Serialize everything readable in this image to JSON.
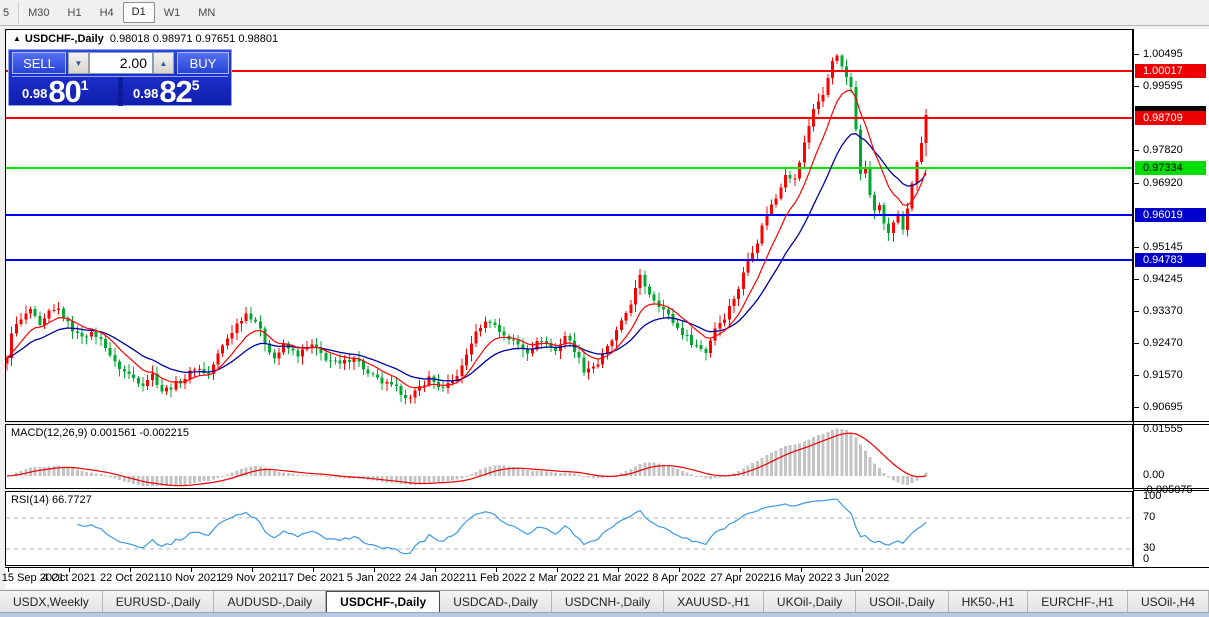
{
  "timeframe_bar": {
    "items": [
      "5",
      "M30",
      "H1",
      "H4",
      "D1",
      "W1",
      "MN"
    ],
    "active": "D1"
  },
  "chart_header": {
    "collapse_icon": "▲",
    "symbol_title": "USDCHF-,Daily",
    "ohlc_text": "0.98018 0.98971 0.97651 0.98801"
  },
  "trade_panel": {
    "sell_label": "SELL",
    "buy_label": "BUY",
    "volume": "2.00",
    "volume_down_icon": "▼",
    "volume_up_icon": "▲",
    "sell_price": {
      "prefix": "0.98",
      "big": "80",
      "sup": "1"
    },
    "buy_price": {
      "prefix": "0.98",
      "big": "82",
      "sup": "5"
    }
  },
  "price_axis": {
    "ticks": [
      "1.00495",
      "0.99595",
      "0.97820",
      "0.96920",
      "0.95145",
      "0.94245",
      "0.93370",
      "0.92470",
      "0.91570",
      "0.90695"
    ],
    "badges": [
      {
        "text": "1.00017",
        "bg": "#ee0000",
        "fg": "#ffffff",
        "marker_above": false
      },
      {
        "text": "0.98709",
        "bg": "#ee0000",
        "fg": "#ffffff",
        "marker_above": true
      },
      {
        "text": "0.97334",
        "bg": "#00dd00",
        "fg": "#000000",
        "marker_above": false
      },
      {
        "text": "0.96019",
        "bg": "#0000cc",
        "fg": "#ffffff",
        "marker_above": false
      },
      {
        "text": "0.94783",
        "bg": "#0000cc",
        "fg": "#ffffff",
        "marker_above": false
      }
    ]
  },
  "macd_panel": {
    "label": "MACD(12,26,9) 0.001561 -0.002215",
    "axis": [
      "0.01555",
      "0.00",
      "-0.005075"
    ]
  },
  "rsi_panel": {
    "label": "RSI(14) 66.7727",
    "axis": [
      "100",
      "70",
      "30",
      "0"
    ]
  },
  "x_axis": {
    "dates": [
      "15 Sep 2021",
      "4 Oct 2021",
      "22 Oct 2021",
      "10 Nov 2021",
      "29 Nov 2021",
      "17 Dec 2021",
      "5 Jan 2022",
      "24 Jan 2022",
      "11 Feb 2022",
      "2 Mar 2022",
      "21 Mar 2022",
      "8 Apr 2022",
      "27 Apr 2022",
      "16 May 2022",
      "3 Jun 2022"
    ]
  },
  "bottom_tabs": {
    "tabs": [
      "USDX,Weekly",
      "EURUSD-,Daily",
      "AUDUSD-,Daily",
      "USDCHF-,Daily",
      "USDCAD-,Daily",
      "USDCNH-,Daily",
      "XAUUSD-,H1",
      "UKOil-,Daily",
      "USOil-,Daily",
      "HK50-,H1",
      "EURCHF-,H1",
      "USOil-,H4"
    ],
    "active": "USDCHF-,Daily",
    "left_arrow": "◄",
    "right_arrow": "►"
  },
  "chart_data": {
    "type": "candlestick",
    "symbol": "USDCHF-",
    "timeframe": "Daily",
    "last_ohlc": {
      "open": 0.98018,
      "high": 0.98971,
      "low": 0.97651,
      "close": 0.98801
    },
    "y_axis": {
      "price_top": 1.00495,
      "price_bottom": 0.90695
    },
    "levels": [
      {
        "price": 1.00017,
        "color": "#ff0000"
      },
      {
        "price": 0.98709,
        "color": "#ff0000"
      },
      {
        "price": 0.97334,
        "color": "#00e600"
      },
      {
        "price": 0.96019,
        "color": "#0000ff"
      },
      {
        "price": 0.94783,
        "color": "#0000ff"
      }
    ],
    "colors": {
      "candle_up": "#ff0000",
      "candle_down": "#00a832",
      "ma_fast": "#ff0000",
      "ma_slow": "#0000a0",
      "macd_hist": "#c4c4c4",
      "macd_signal": "#ee0000",
      "rsi_line": "#3d9ae8"
    },
    "indicators": {
      "macd": {
        "params": "12,26,9",
        "value": 0.001561,
        "signal_value": -0.002215,
        "scale_max": 0.01555,
        "scale_min": -0.005075
      },
      "rsi": {
        "period": 14,
        "value": 66.7727,
        "levels": [
          70,
          30
        ]
      },
      "ma_fast_period": 9,
      "ma_slow_period": 20
    },
    "close_path_anchors": [
      [
        0,
        0.92
      ],
      [
        1,
        0.928
      ],
      [
        3,
        0.931
      ],
      [
        5,
        0.934
      ],
      [
        7,
        0.929
      ],
      [
        9,
        0.933
      ],
      [
        11,
        0.934
      ],
      [
        13,
        0.93
      ],
      [
        15,
        0.927
      ],
      [
        17,
        0.9272
      ],
      [
        19,
        0.9268
      ],
      [
        21,
        0.924
      ],
      [
        23,
        0.919
      ],
      [
        25,
        0.9168
      ],
      [
        27,
        0.915
      ],
      [
        29,
        0.9135
      ],
      [
        31,
        0.916
      ],
      [
        33,
        0.9115
      ],
      [
        35,
        0.9125
      ],
      [
        38,
        0.915
      ],
      [
        40,
        0.918
      ],
      [
        43,
        0.916
      ],
      [
        45,
        0.9215
      ],
      [
        47,
        0.926
      ],
      [
        49,
        0.93
      ],
      [
        51,
        0.933
      ],
      [
        53,
        0.931
      ],
      [
        55,
        0.925
      ],
      [
        57,
        0.9205
      ],
      [
        59,
        0.924
      ],
      [
        62,
        0.9215
      ],
      [
        65,
        0.924
      ],
      [
        68,
        0.9205
      ],
      [
        71,
        0.9186
      ],
      [
        74,
        0.921
      ],
      [
        77,
        0.916
      ],
      [
        80,
        0.9138
      ],
      [
        83,
        0.912
      ],
      [
        86,
        0.9092
      ],
      [
        88,
        0.9125
      ],
      [
        90,
        0.915
      ],
      [
        93,
        0.9118
      ],
      [
        95,
        0.914
      ],
      [
        97,
        0.918
      ],
      [
        99,
        0.925
      ],
      [
        101,
        0.9295
      ],
      [
        103,
        0.931
      ],
      [
        105,
        0.928
      ],
      [
        108,
        0.925
      ],
      [
        111,
        0.9225
      ],
      [
        114,
        0.9258
      ],
      [
        117,
        0.9225
      ],
      [
        119,
        0.9268
      ],
      [
        121,
        0.923
      ],
      [
        123,
        0.9172
      ],
      [
        126,
        0.919
      ],
      [
        129,
        0.9255
      ],
      [
        131,
        0.9302
      ],
      [
        133,
        0.936
      ],
      [
        135,
        0.943
      ],
      [
        137,
        0.9385
      ],
      [
        140,
        0.934
      ],
      [
        143,
        0.9288
      ],
      [
        146,
        0.925
      ],
      [
        149,
        0.9222
      ],
      [
        151,
        0.929
      ],
      [
        153,
        0.932
      ],
      [
        156,
        0.94
      ],
      [
        158,
        0.948
      ],
      [
        160,
        0.953
      ],
      [
        162,
        0.961
      ],
      [
        164,
        0.965
      ],
      [
        166,
        0.972
      ],
      [
        168,
        0.97
      ],
      [
        170,
        0.98
      ],
      [
        172,
        0.99
      ],
      [
        174,
        0.9935
      ],
      [
        176,
        1.003
      ],
      [
        177,
        1.0045
      ],
      [
        178,
        1.0015
      ],
      [
        179,
        0.9985
      ],
      [
        180,
        0.9958
      ],
      [
        181,
        0.984
      ],
      [
        182,
        0.9725
      ],
      [
        183,
        0.973
      ],
      [
        184,
        0.966
      ],
      [
        185,
        0.961
      ],
      [
        186,
        0.963
      ],
      [
        187,
        0.958
      ],
      [
        188,
        0.9555
      ],
      [
        189,
        0.9575
      ],
      [
        190,
        0.96
      ],
      [
        191,
        0.956
      ],
      [
        192,
        0.962
      ],
      [
        193,
        0.9685
      ],
      [
        194,
        0.975
      ],
      [
        195,
        0.98018
      ],
      [
        196,
        0.98801
      ]
    ]
  }
}
